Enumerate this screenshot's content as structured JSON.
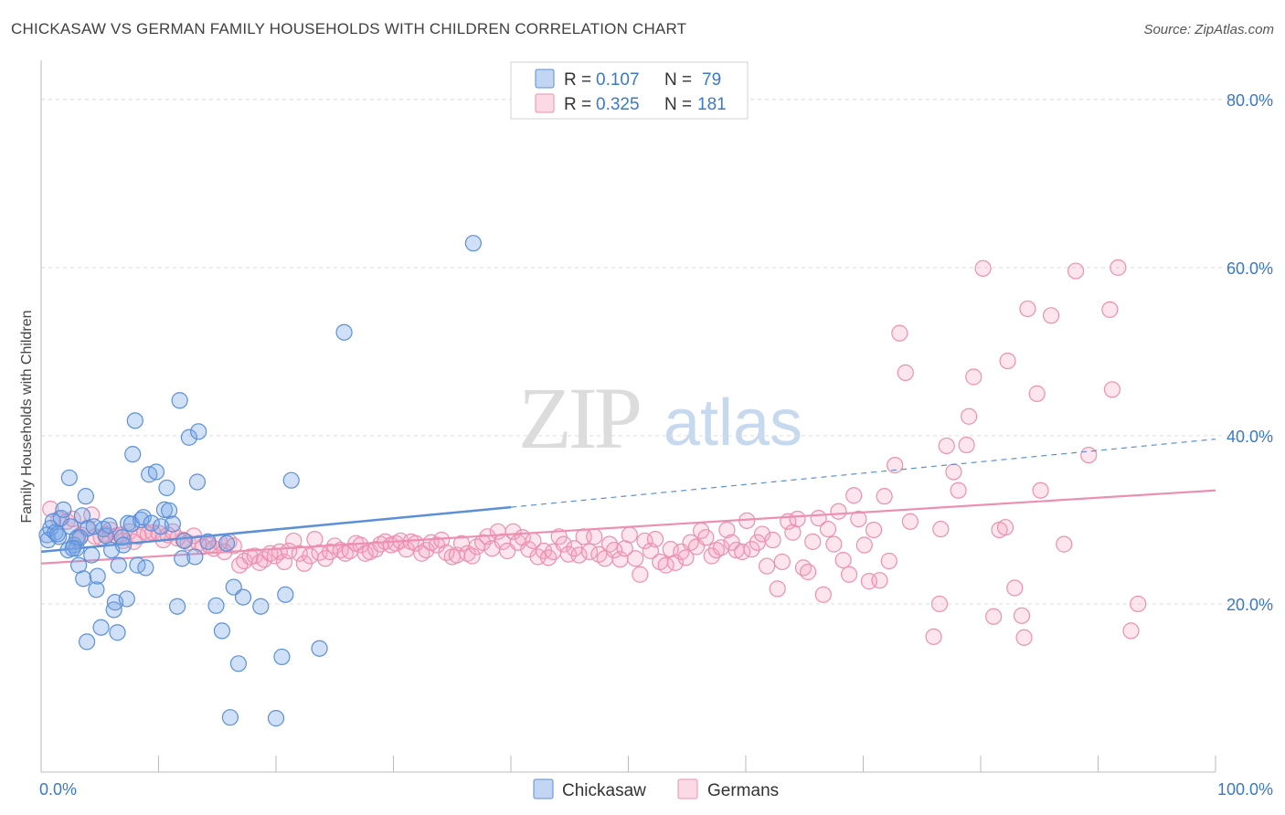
{
  "title": "CHICKASAW VS GERMAN FAMILY HOUSEHOLDS WITH CHILDREN CORRELATION CHART",
  "source": "Source: ZipAtlas.com",
  "watermark": {
    "zip": "ZIP",
    "atlas": "atlas"
  },
  "legend_stats": [
    {
      "r_label": "R = ",
      "r_value": "0.107",
      "n_label": "N = ",
      "n_value": "79",
      "color": "#5b8fd8"
    },
    {
      "r_label": "R = ",
      "r_value": "0.325",
      "n_label": "N = ",
      "n_value": "181",
      "color": "#ec8fb0"
    }
  ],
  "colors": {
    "blue": "#5b8fd8",
    "pink": "#ec8fb0",
    "value_text": "#3a78c8",
    "grid": "#dddddd"
  },
  "chart_data": {
    "type": "scatter",
    "title": "CHICKASAW VS GERMAN FAMILY HOUSEHOLDS WITH CHILDREN CORRELATION CHART",
    "xlabel": "",
    "ylabel": "Family Households with Children",
    "xlim": [
      0,
      100
    ],
    "ylim": [
      0,
      84
    ],
    "x_tick_labels": [
      "0.0%",
      "100.0%"
    ],
    "y_ticks": [
      20,
      40,
      60,
      80
    ],
    "y_tick_labels": [
      "20.0%",
      "40.0%",
      "60.0%",
      "80.0%"
    ],
    "grid": "horizontal dashed",
    "legend": "bottom-center",
    "series": [
      {
        "name": "Chickasaw",
        "color": "#5b8fd8",
        "R": 0.107,
        "N": 79,
        "trend": {
          "x": [
            0,
            40
          ],
          "y": [
            26.2,
            31.5
          ],
          "dashed_extension_to": [
            100,
            39.6
          ]
        },
        "points": [
          [
            0.5,
            28.2
          ],
          [
            0.6,
            27.6
          ],
          [
            0.8,
            29.0
          ],
          [
            1.0,
            29.8
          ],
          [
            1.2,
            28.5
          ],
          [
            1.5,
            28.0
          ],
          [
            1.7,
            30.2
          ],
          [
            1.9,
            31.2
          ],
          [
            2.3,
            26.4
          ],
          [
            2.4,
            35.0
          ],
          [
            2.5,
            29.2
          ],
          [
            2.8,
            27.0
          ],
          [
            3.0,
            26.6
          ],
          [
            3.1,
            27.9
          ],
          [
            3.2,
            24.6
          ],
          [
            3.5,
            30.5
          ],
          [
            3.6,
            23.0
          ],
          [
            3.8,
            32.8
          ],
          [
            3.9,
            15.5
          ],
          [
            4.0,
            29.0
          ],
          [
            4.3,
            25.8
          ],
          [
            4.5,
            29.2
          ],
          [
            4.7,
            21.7
          ],
          [
            4.8,
            23.3
          ],
          [
            5.1,
            17.2
          ],
          [
            5.3,
            28.9
          ],
          [
            5.5,
            28.1
          ],
          [
            5.8,
            29.3
          ],
          [
            6.0,
            26.4
          ],
          [
            6.2,
            19.3
          ],
          [
            6.3,
            20.2
          ],
          [
            6.5,
            16.6
          ],
          [
            6.6,
            24.6
          ],
          [
            6.9,
            27.9
          ],
          [
            7.0,
            27.0
          ],
          [
            7.3,
            20.6
          ],
          [
            7.4,
            29.6
          ],
          [
            7.7,
            29.5
          ],
          [
            7.8,
            37.8
          ],
          [
            8.0,
            41.8
          ],
          [
            8.2,
            24.6
          ],
          [
            8.5,
            30.0
          ],
          [
            8.7,
            30.3
          ],
          [
            8.9,
            24.3
          ],
          [
            9.2,
            35.4
          ],
          [
            9.4,
            29.6
          ],
          [
            9.8,
            35.7
          ],
          [
            10.2,
            29.2
          ],
          [
            10.5,
            31.2
          ],
          [
            10.7,
            33.8
          ],
          [
            10.9,
            31.1
          ],
          [
            11.2,
            29.5
          ],
          [
            11.6,
            19.7
          ],
          [
            11.8,
            44.2
          ],
          [
            12.0,
            25.4
          ],
          [
            12.2,
            27.5
          ],
          [
            12.6,
            39.8
          ],
          [
            13.1,
            25.6
          ],
          [
            13.3,
            34.5
          ],
          [
            13.4,
            40.5
          ],
          [
            14.2,
            27.4
          ],
          [
            14.9,
            19.8
          ],
          [
            15.4,
            16.8
          ],
          [
            15.8,
            27.2
          ],
          [
            16.1,
            6.5
          ],
          [
            16.4,
            22.0
          ],
          [
            16.8,
            12.9
          ],
          [
            17.2,
            20.8
          ],
          [
            18.7,
            19.7
          ],
          [
            20.0,
            6.4
          ],
          [
            20.5,
            13.7
          ],
          [
            20.8,
            21.1
          ],
          [
            21.3,
            34.7
          ],
          [
            23.7,
            14.7
          ],
          [
            25.8,
            52.3
          ],
          [
            36.8,
            62.9
          ],
          [
            3.3,
            27.9
          ],
          [
            2.7,
            26.6
          ],
          [
            1.4,
            28.3
          ]
        ]
      },
      {
        "name": "Germans",
        "color": "#ec8fb0",
        "R": 0.325,
        "N": 181,
        "trend": {
          "x": [
            0,
            100
          ],
          "y": [
            24.8,
            33.5
          ]
        },
        "points": [
          [
            0.8,
            31.3
          ],
          [
            1.5,
            30.1
          ],
          [
            2.2,
            29.8
          ],
          [
            2.7,
            30.1
          ],
          [
            3.0,
            27.7
          ],
          [
            3.4,
            28.2
          ],
          [
            3.9,
            29.0
          ],
          [
            4.3,
            30.6
          ],
          [
            4.6,
            28.0
          ],
          [
            5.1,
            27.9
          ],
          [
            5.5,
            28.3
          ],
          [
            5.9,
            28.8
          ],
          [
            6.4,
            28.1
          ],
          [
            6.7,
            28.2
          ],
          [
            7.0,
            27.5
          ],
          [
            7.5,
            28.6
          ],
          [
            7.9,
            27.4
          ],
          [
            8.3,
            28.0
          ],
          [
            8.8,
            28.6
          ],
          [
            9.1,
            28.3
          ],
          [
            9.5,
            28.5
          ],
          [
            10.0,
            28.4
          ],
          [
            10.4,
            27.6
          ],
          [
            10.8,
            28.2
          ],
          [
            11.2,
            28.6
          ],
          [
            11.6,
            27.8
          ],
          [
            12.1,
            27.6
          ],
          [
            12.5,
            27.3
          ],
          [
            13.0,
            28.1
          ],
          [
            13.4,
            27.2
          ],
          [
            13.8,
            26.8
          ],
          [
            14.3,
            27.0
          ],
          [
            14.7,
            26.6
          ],
          [
            15.2,
            27.3
          ],
          [
            15.6,
            26.2
          ],
          [
            16.0,
            27.4
          ],
          [
            16.4,
            26.9
          ],
          [
            16.9,
            24.6
          ],
          [
            17.3,
            25.1
          ],
          [
            17.8,
            25.6
          ],
          [
            18.2,
            25.7
          ],
          [
            18.6,
            24.9
          ],
          [
            19.0,
            25.3
          ],
          [
            19.5,
            26.0
          ],
          [
            19.9,
            25.7
          ],
          [
            20.3,
            26.2
          ],
          [
            20.7,
            25.0
          ],
          [
            21.1,
            26.3
          ],
          [
            21.5,
            27.5
          ],
          [
            22.0,
            26.0
          ],
          [
            22.4,
            24.8
          ],
          [
            22.9,
            25.7
          ],
          [
            23.3,
            27.7
          ],
          [
            23.7,
            26.1
          ],
          [
            24.2,
            25.4
          ],
          [
            24.6,
            26.2
          ],
          [
            25.0,
            26.9
          ],
          [
            25.5,
            26.4
          ],
          [
            25.9,
            26.0
          ],
          [
            26.3,
            26.3
          ],
          [
            26.8,
            27.2
          ],
          [
            27.2,
            27.0
          ],
          [
            27.6,
            26.0
          ],
          [
            28.0,
            26.2
          ],
          [
            28.5,
            26.5
          ],
          [
            28.9,
            27.1
          ],
          [
            29.3,
            27.4
          ],
          [
            29.8,
            27.0
          ],
          [
            30.2,
            27.2
          ],
          [
            30.6,
            27.5
          ],
          [
            31.1,
            26.5
          ],
          [
            31.5,
            27.4
          ],
          [
            31.9,
            27.2
          ],
          [
            32.4,
            26.0
          ],
          [
            32.8,
            26.4
          ],
          [
            33.2,
            27.3
          ],
          [
            33.7,
            27.0
          ],
          [
            34.1,
            27.6
          ],
          [
            34.5,
            26.1
          ],
          [
            35.0,
            25.6
          ],
          [
            35.4,
            25.8
          ],
          [
            35.8,
            27.2
          ],
          [
            36.3,
            26.0
          ],
          [
            36.7,
            25.7
          ],
          [
            37.1,
            26.8
          ],
          [
            37.6,
            27.3
          ],
          [
            38.0,
            28.0
          ],
          [
            38.4,
            26.6
          ],
          [
            38.9,
            28.6
          ],
          [
            39.3,
            27.4
          ],
          [
            39.7,
            26.3
          ],
          [
            40.2,
            28.6
          ],
          [
            40.6,
            27.3
          ],
          [
            41.0,
            27.9
          ],
          [
            41.5,
            26.5
          ],
          [
            41.9,
            27.5
          ],
          [
            42.3,
            25.6
          ],
          [
            42.8,
            26.3
          ],
          [
            43.2,
            25.5
          ],
          [
            43.6,
            26.2
          ],
          [
            44.1,
            28.0
          ],
          [
            44.5,
            27.1
          ],
          [
            44.9,
            25.9
          ],
          [
            45.4,
            26.6
          ],
          [
            45.8,
            25.8
          ],
          [
            46.2,
            28.0
          ],
          [
            46.7,
            26.2
          ],
          [
            47.1,
            28.0
          ],
          [
            47.5,
            25.9
          ],
          [
            48.0,
            25.4
          ],
          [
            48.4,
            27.1
          ],
          [
            48.8,
            26.4
          ],
          [
            49.3,
            25.3
          ],
          [
            49.7,
            26.6
          ],
          [
            50.1,
            28.2
          ],
          [
            50.6,
            25.4
          ],
          [
            51.0,
            23.5
          ],
          [
            51.4,
            27.5
          ],
          [
            51.9,
            26.3
          ],
          [
            52.3,
            27.7
          ],
          [
            52.7,
            25.0
          ],
          [
            53.2,
            24.6
          ],
          [
            53.6,
            26.5
          ],
          [
            54.0,
            24.9
          ],
          [
            54.5,
            26.2
          ],
          [
            54.9,
            25.5
          ],
          [
            55.3,
            27.3
          ],
          [
            55.8,
            26.8
          ],
          [
            56.2,
            28.7
          ],
          [
            56.6,
            27.9
          ],
          [
            57.1,
            25.7
          ],
          [
            57.5,
            26.4
          ],
          [
            57.9,
            26.7
          ],
          [
            58.4,
            28.8
          ],
          [
            58.8,
            27.3
          ],
          [
            59.2,
            26.4
          ],
          [
            59.7,
            26.2
          ],
          [
            60.1,
            29.9
          ],
          [
            60.5,
            26.5
          ],
          [
            61.0,
            27.3
          ],
          [
            61.4,
            28.3
          ],
          [
            61.8,
            24.5
          ],
          [
            62.3,
            27.6
          ],
          [
            62.7,
            21.8
          ],
          [
            63.1,
            25.0
          ],
          [
            63.6,
            29.8
          ],
          [
            64.0,
            28.5
          ],
          [
            64.4,
            30.1
          ],
          [
            64.9,
            24.3
          ],
          [
            65.3,
            23.8
          ],
          [
            65.7,
            27.4
          ],
          [
            66.2,
            30.2
          ],
          [
            66.6,
            21.1
          ],
          [
            67.0,
            28.9
          ],
          [
            67.5,
            27.1
          ],
          [
            67.9,
            31.0
          ],
          [
            68.3,
            25.2
          ],
          [
            68.8,
            23.5
          ],
          [
            69.2,
            32.9
          ],
          [
            69.6,
            30.1
          ],
          [
            70.1,
            27.0
          ],
          [
            70.5,
            22.7
          ],
          [
            70.9,
            28.8
          ],
          [
            71.4,
            22.8
          ],
          [
            71.8,
            32.8
          ],
          [
            72.2,
            25.1
          ],
          [
            72.7,
            36.5
          ],
          [
            73.1,
            52.2
          ],
          [
            73.6,
            47.5
          ],
          [
            74.0,
            29.8
          ],
          [
            76.0,
            16.1
          ],
          [
            76.5,
            20.0
          ],
          [
            77.1,
            38.8
          ],
          [
            77.7,
            35.7
          ],
          [
            78.1,
            33.5
          ],
          [
            79.0,
            42.3
          ],
          [
            79.4,
            47.0
          ],
          [
            80.2,
            59.9
          ],
          [
            81.1,
            18.5
          ],
          [
            81.6,
            28.8
          ],
          [
            82.3,
            48.9
          ],
          [
            82.9,
            21.9
          ],
          [
            84.0,
            55.1
          ],
          [
            84.8,
            45.0
          ],
          [
            86.0,
            54.3
          ],
          [
            87.1,
            27.1
          ],
          [
            88.1,
            59.6
          ],
          [
            89.2,
            37.7
          ],
          [
            91.2,
            45.5
          ],
          [
            91.7,
            60.0
          ],
          [
            92.8,
            16.8
          ],
          [
            93.4,
            20.0
          ],
          [
            91.0,
            55.0
          ],
          [
            85.1,
            33.5
          ],
          [
            83.7,
            16.0
          ],
          [
            83.5,
            18.6
          ],
          [
            82.1,
            29.1
          ],
          [
            76.6,
            28.9
          ],
          [
            78.8,
            38.9
          ]
        ]
      }
    ]
  }
}
